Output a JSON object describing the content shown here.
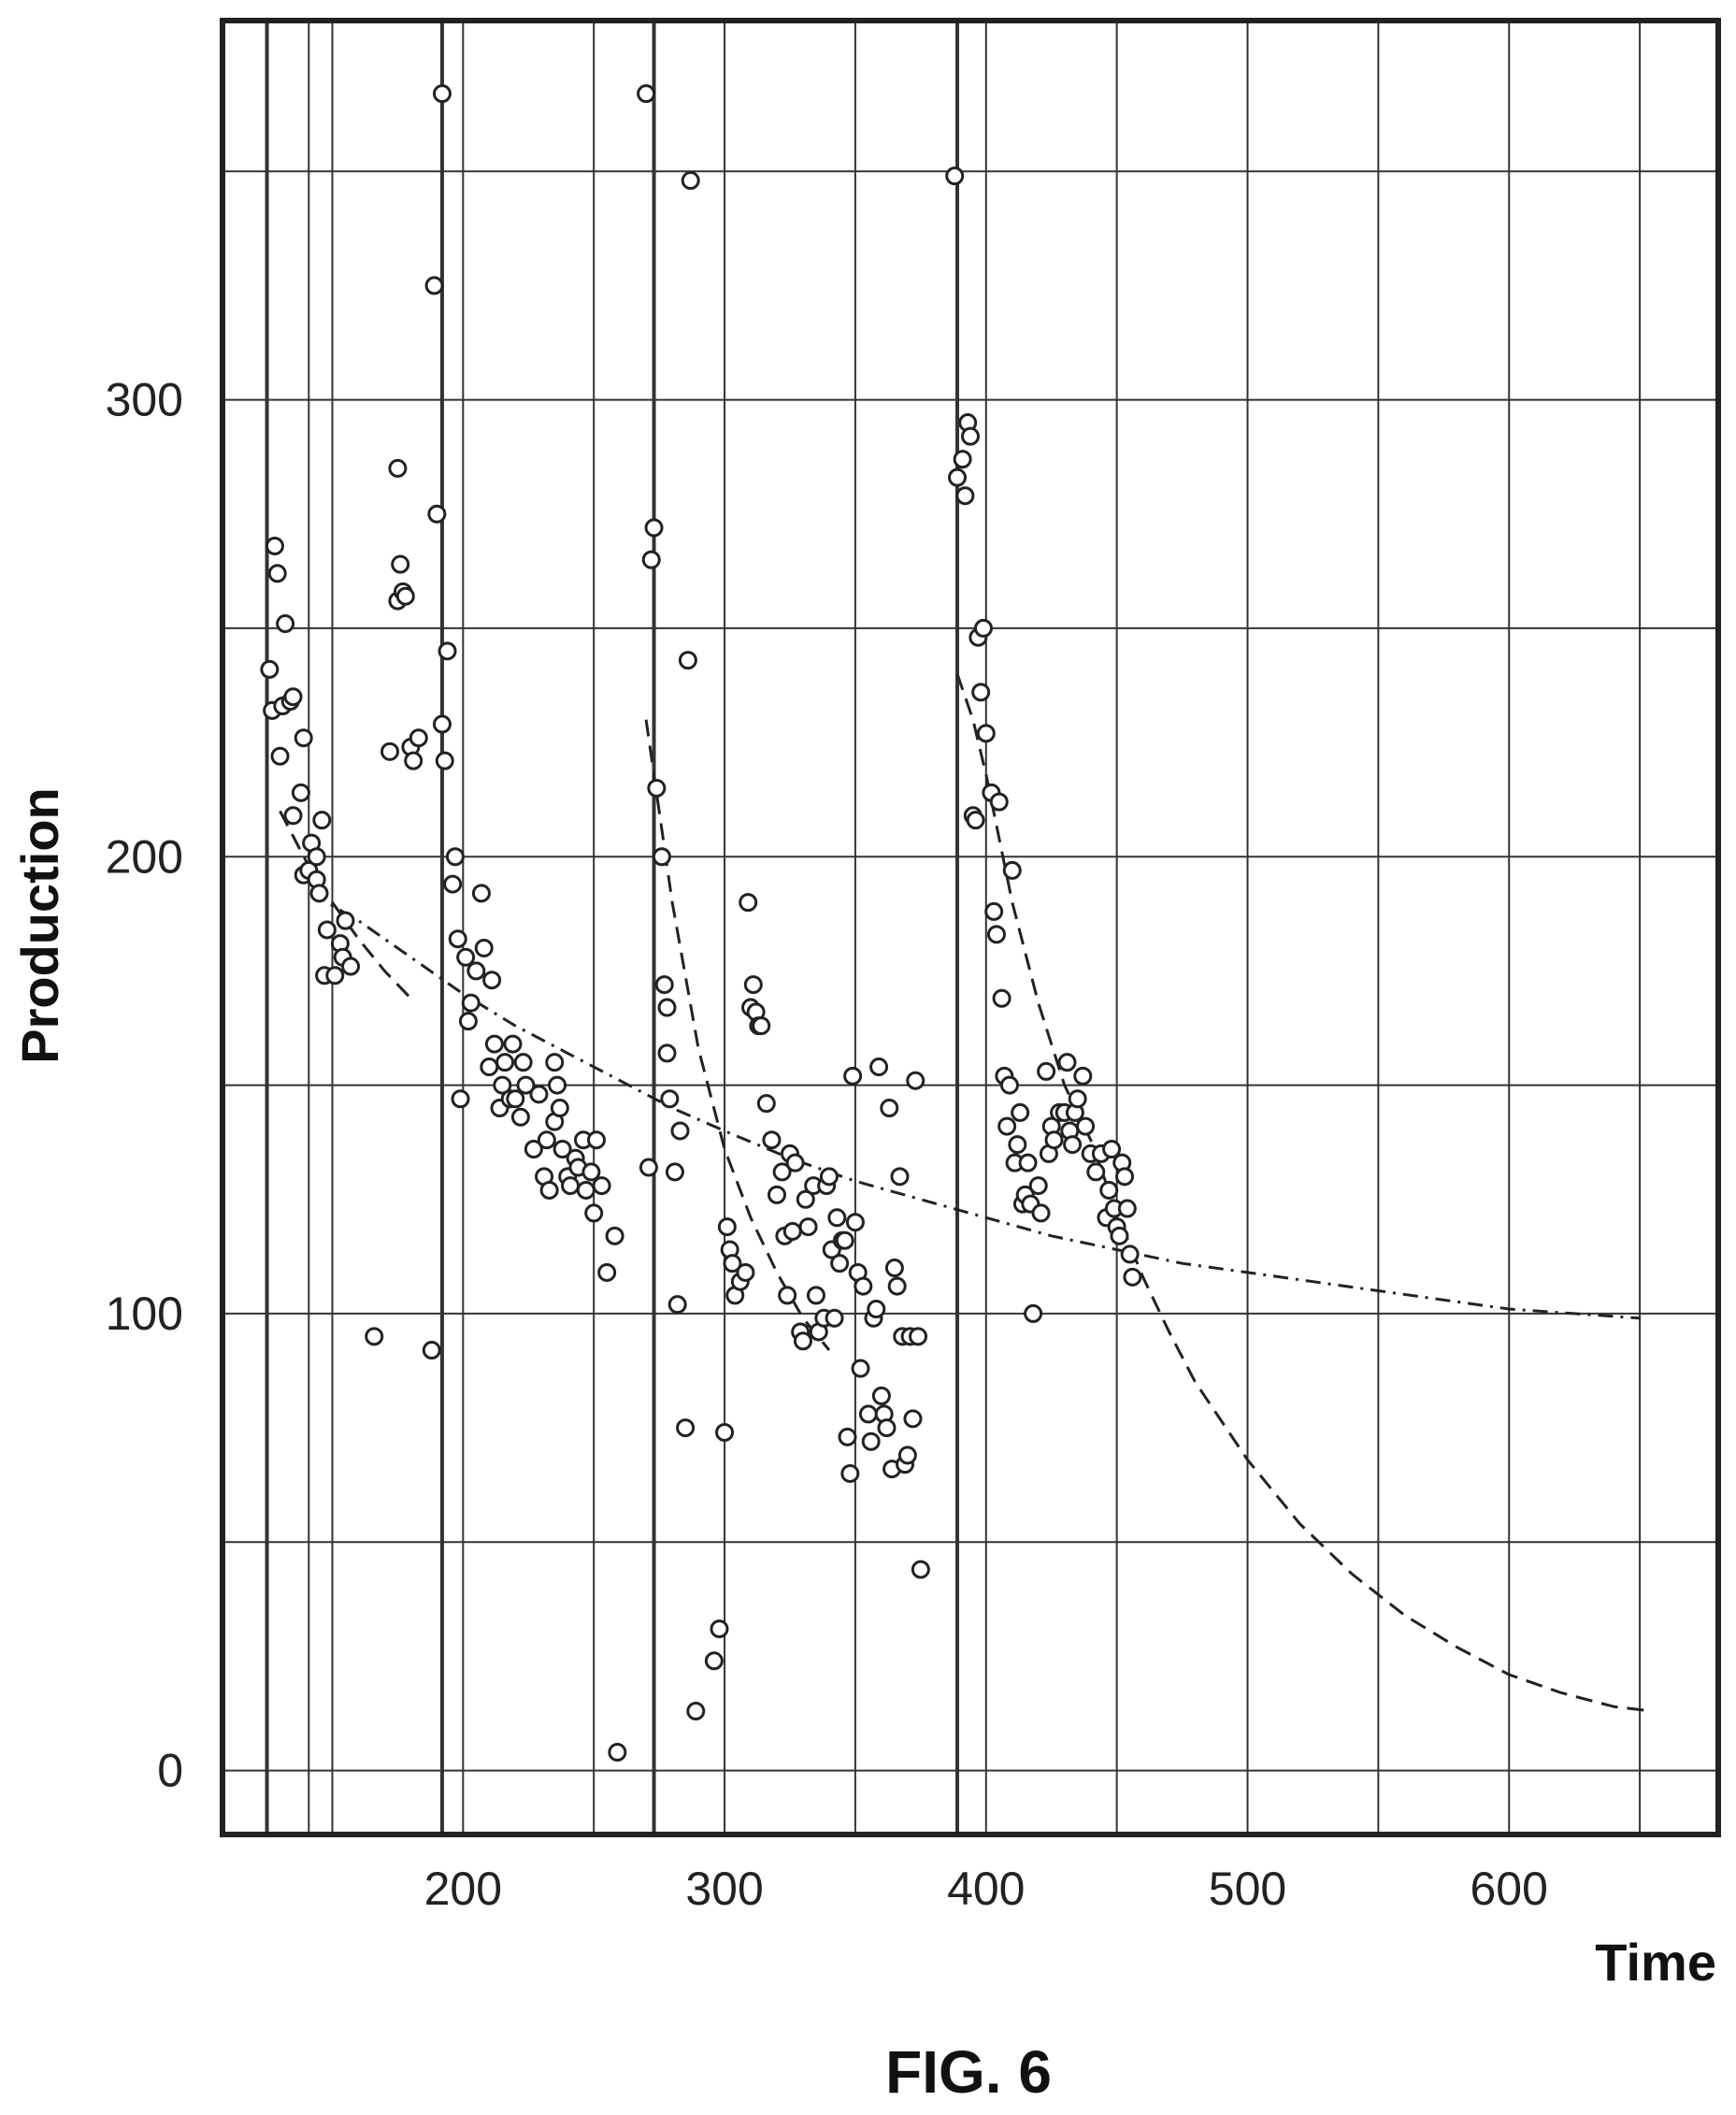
{
  "chart_data": {
    "type": "scatter",
    "title": "",
    "xlabel": "Time",
    "ylabel": "Production",
    "figure_label": "FIG. 6",
    "xlim": [
      108,
      680
    ],
    "ylim": [
      -14,
      383
    ],
    "x_ticks": [
      200,
      300,
      400,
      500,
      600
    ],
    "y_ticks": [
      0,
      100,
      200,
      300
    ],
    "x_grid": [
      125,
      141,
      150,
      192,
      200,
      250,
      273,
      300,
      350,
      389,
      400,
      450,
      500,
      550,
      600,
      650
    ],
    "x_grid_strong": [
      125,
      192,
      273,
      389
    ],
    "y_grid": [
      0,
      50,
      100,
      150,
      200,
      250,
      300,
      350
    ],
    "legend": "none",
    "grid": true,
    "colors": {
      "ink": "#222222",
      "grid": "#333333",
      "background": "#ffffff"
    },
    "points": [
      [
        126,
        241
      ],
      [
        128,
        268
      ],
      [
        129,
        262
      ],
      [
        127,
        232
      ],
      [
        130,
        222
      ],
      [
        131,
        233
      ],
      [
        132,
        251
      ],
      [
        134,
        234
      ],
      [
        135,
        235
      ],
      [
        135,
        209
      ],
      [
        138,
        214
      ],
      [
        139,
        226
      ],
      [
        139,
        196
      ],
      [
        141,
        197
      ],
      [
        142,
        203
      ],
      [
        144,
        195
      ],
      [
        144,
        200
      ],
      [
        145,
        192
      ],
      [
        146,
        208
      ],
      [
        147,
        174
      ],
      [
        148,
        184
      ],
      [
        151,
        174
      ],
      [
        153,
        181
      ],
      [
        154,
        178
      ],
      [
        155,
        186
      ],
      [
        157,
        176
      ],
      [
        166,
        95
      ],
      [
        172,
        223
      ],
      [
        175,
        285
      ],
      [
        175,
        256
      ],
      [
        176,
        264
      ],
      [
        177,
        258
      ],
      [
        178,
        257
      ],
      [
        180,
        224
      ],
      [
        181,
        221
      ],
      [
        183,
        226
      ],
      [
        188,
        92
      ],
      [
        189,
        325
      ],
      [
        190,
        275
      ],
      [
        192,
        229
      ],
      [
        192,
        367
      ],
      [
        193,
        221
      ],
      [
        194,
        245
      ],
      [
        196,
        194
      ],
      [
        197,
        200
      ],
      [
        198,
        182
      ],
      [
        199,
        147
      ],
      [
        201,
        178
      ],
      [
        202,
        164
      ],
      [
        203,
        168
      ],
      [
        205,
        175
      ],
      [
        207,
        192
      ],
      [
        208,
        180
      ],
      [
        210,
        154
      ],
      [
        211,
        173
      ],
      [
        212,
        159
      ],
      [
        214,
        145
      ],
      [
        215,
        150
      ],
      [
        216,
        155
      ],
      [
        218,
        147
      ],
      [
        219,
        159
      ],
      [
        220,
        147
      ],
      [
        222,
        143
      ],
      [
        223,
        155
      ],
      [
        224,
        150
      ],
      [
        227,
        136
      ],
      [
        229,
        148
      ],
      [
        231,
        130
      ],
      [
        232,
        138
      ],
      [
        233,
        127
      ],
      [
        235,
        155
      ],
      [
        235,
        142
      ],
      [
        236,
        150
      ],
      [
        237,
        145
      ],
      [
        238,
        136
      ],
      [
        240,
        130
      ],
      [
        241,
        128
      ],
      [
        243,
        134
      ],
      [
        244,
        132
      ],
      [
        246,
        138
      ],
      [
        247,
        127
      ],
      [
        249,
        131
      ],
      [
        250,
        122
      ],
      [
        251,
        138
      ],
      [
        253,
        128
      ],
      [
        255,
        109
      ],
      [
        258,
        117
      ],
      [
        259,
        4
      ],
      [
        270,
        367
      ],
      [
        271,
        132
      ],
      [
        272,
        265
      ],
      [
        273,
        272
      ],
      [
        274,
        215
      ],
      [
        276,
        200
      ],
      [
        277,
        172
      ],
      [
        278,
        167
      ],
      [
        278,
        157
      ],
      [
        279,
        147
      ],
      [
        281,
        131
      ],
      [
        282,
        102
      ],
      [
        283,
        140
      ],
      [
        285,
        75
      ],
      [
        286,
        243
      ],
      [
        287,
        348
      ],
      [
        289,
        13
      ],
      [
        296,
        24
      ],
      [
        298,
        31
      ],
      [
        300,
        74
      ],
      [
        301,
        119
      ],
      [
        302,
        114
      ],
      [
        303,
        111
      ],
      [
        304,
        104
      ],
      [
        306,
        107
      ],
      [
        308,
        109
      ],
      [
        309,
        190
      ],
      [
        310,
        167
      ],
      [
        311,
        172
      ],
      [
        312,
        166
      ],
      [
        313,
        163
      ],
      [
        314,
        163
      ],
      [
        316,
        146
      ],
      [
        318,
        138
      ],
      [
        320,
        126
      ],
      [
        322,
        131
      ],
      [
        323,
        117
      ],
      [
        324,
        104
      ],
      [
        325,
        135
      ],
      [
        326,
        118
      ],
      [
        327,
        133
      ],
      [
        329,
        96
      ],
      [
        330,
        94
      ],
      [
        331,
        125
      ],
      [
        332,
        119
      ],
      [
        334,
        128
      ],
      [
        335,
        104
      ],
      [
        336,
        96
      ],
      [
        338,
        99
      ],
      [
        339,
        128
      ],
      [
        340,
        130
      ],
      [
        341,
        114
      ],
      [
        342,
        99
      ],
      [
        343,
        121
      ],
      [
        344,
        111
      ],
      [
        345,
        116
      ],
      [
        346,
        116
      ],
      [
        347,
        73
      ],
      [
        348,
        65
      ],
      [
        349,
        152
      ],
      [
        350,
        120
      ],
      [
        351,
        109
      ],
      [
        352,
        88
      ],
      [
        353,
        106
      ],
      [
        355,
        78
      ],
      [
        356,
        72
      ],
      [
        357,
        99
      ],
      [
        358,
        101
      ],
      [
        359,
        154
      ],
      [
        360,
        82
      ],
      [
        361,
        78
      ],
      [
        362,
        75
      ],
      [
        363,
        145
      ],
      [
        364,
        66
      ],
      [
        365,
        110
      ],
      [
        366,
        106
      ],
      [
        367,
        130
      ],
      [
        368,
        95
      ],
      [
        369,
        67
      ],
      [
        370,
        69
      ],
      [
        371,
        95
      ],
      [
        372,
        77
      ],
      [
        373,
        151
      ],
      [
        374,
        95
      ],
      [
        375,
        44
      ],
      [
        388,
        349
      ],
      [
        389,
        283
      ],
      [
        391,
        287
      ],
      [
        392,
        279
      ],
      [
        393,
        295
      ],
      [
        394,
        292
      ],
      [
        395,
        209
      ],
      [
        396,
        208
      ],
      [
        397,
        248
      ],
      [
        398,
        236
      ],
      [
        399,
        250
      ],
      [
        400,
        227
      ],
      [
        402,
        214
      ],
      [
        403,
        188
      ],
      [
        404,
        183
      ],
      [
        405,
        212
      ],
      [
        406,
        169
      ],
      [
        407,
        152
      ],
      [
        408,
        141
      ],
      [
        409,
        150
      ],
      [
        410,
        197
      ],
      [
        411,
        133
      ],
      [
        412,
        137
      ],
      [
        413,
        144
      ],
      [
        414,
        124
      ],
      [
        415,
        126
      ],
      [
        416,
        133
      ],
      [
        417,
        124
      ],
      [
        418,
        100
      ],
      [
        420,
        128
      ],
      [
        421,
        122
      ],
      [
        423,
        153
      ],
      [
        424,
        135
      ],
      [
        425,
        141
      ],
      [
        426,
        138
      ],
      [
        428,
        144
      ],
      [
        430,
        144
      ],
      [
        431,
        155
      ],
      [
        432,
        140
      ],
      [
        433,
        137
      ],
      [
        434,
        144
      ],
      [
        435,
        147
      ],
      [
        437,
        152
      ],
      [
        438,
        141
      ],
      [
        440,
        135
      ],
      [
        442,
        131
      ],
      [
        444,
        135
      ],
      [
        446,
        121
      ],
      [
        447,
        127
      ],
      [
        448,
        136
      ],
      [
        449,
        123
      ],
      [
        450,
        119
      ],
      [
        451,
        117
      ],
      [
        452,
        133
      ],
      [
        453,
        130
      ],
      [
        454,
        123
      ],
      [
        455,
        113
      ],
      [
        456,
        108
      ]
    ],
    "fit_long": [
      [
        142,
        192
      ],
      [
        160,
        186
      ],
      [
        180,
        178
      ],
      [
        200,
        170
      ],
      [
        220,
        163
      ],
      [
        240,
        157
      ],
      [
        260,
        151
      ],
      [
        280,
        145
      ],
      [
        300,
        140
      ],
      [
        325,
        134
      ],
      [
        350,
        129
      ],
      [
        375,
        125
      ],
      [
        400,
        121
      ],
      [
        425,
        117
      ],
      [
        450,
        114
      ],
      [
        475,
        111
      ],
      [
        500,
        109
      ],
      [
        525,
        107
      ],
      [
        550,
        105
      ],
      [
        575,
        103
      ],
      [
        600,
        101
      ],
      [
        625,
        100
      ],
      [
        650,
        99
      ]
    ],
    "fit_segments": [
      [
        [
          130,
          210
        ],
        [
          140,
          199
        ],
        [
          150,
          190
        ],
        [
          160,
          182
        ],
        [
          170,
          175
        ],
        [
          180,
          169
        ]
      ],
      [
        [
          270,
          230
        ],
        [
          280,
          190
        ],
        [
          290,
          158
        ],
        [
          300,
          136
        ],
        [
          310,
          121
        ],
        [
          320,
          109
        ],
        [
          330,
          99
        ],
        [
          340,
          92
        ]
      ],
      [
        [
          389,
          240
        ],
        [
          395,
          230
        ],
        [
          400,
          218
        ],
        [
          410,
          190
        ],
        [
          420,
          168
        ],
        [
          430,
          150
        ],
        [
          440,
          138
        ],
        [
          450,
          122
        ],
        [
          460,
          108
        ],
        [
          470,
          96
        ],
        [
          480,
          85
        ],
        [
          500,
          68
        ],
        [
          520,
          54
        ],
        [
          540,
          43
        ],
        [
          560,
          34
        ],
        [
          580,
          27
        ],
        [
          600,
          21
        ],
        [
          620,
          17
        ],
        [
          640,
          14
        ],
        [
          655,
          13
        ]
      ]
    ]
  }
}
